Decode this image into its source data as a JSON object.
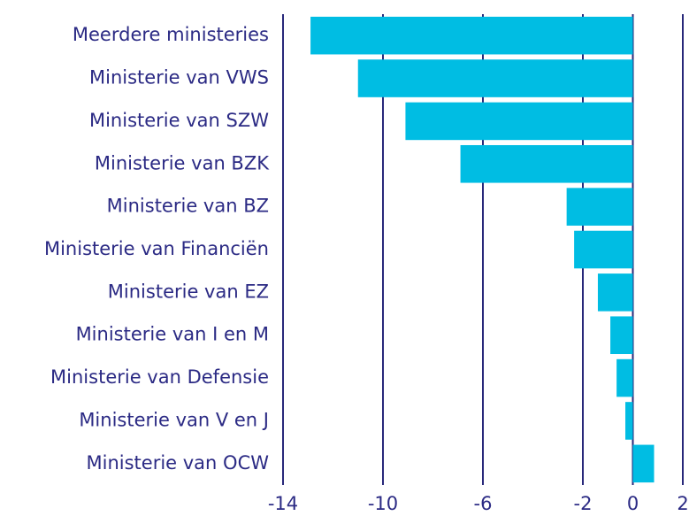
{
  "chart_data": {
    "type": "bar",
    "orientation": "horizontal",
    "categories": [
      "Meerdere ministeries",
      "Ministerie van VWS",
      "Ministerie van SZW",
      "Ministerie van BZK",
      "Ministerie van BZ",
      "Ministerie van Financiën",
      "Ministerie van EZ",
      "Ministerie van I en M",
      "Ministerie van Defensie",
      "Ministerie van V en J",
      "Ministerie van OCW"
    ],
    "values": [
      -12.9,
      -11.0,
      -9.1,
      -6.9,
      -2.65,
      -2.35,
      -1.4,
      -0.9,
      -0.65,
      -0.3,
      0.85
    ],
    "color": "#00bde3",
    "xlim": [
      -14,
      2
    ],
    "xticks": [
      -14,
      -10,
      -6,
      -2,
      0,
      2
    ],
    "grid": true
  }
}
